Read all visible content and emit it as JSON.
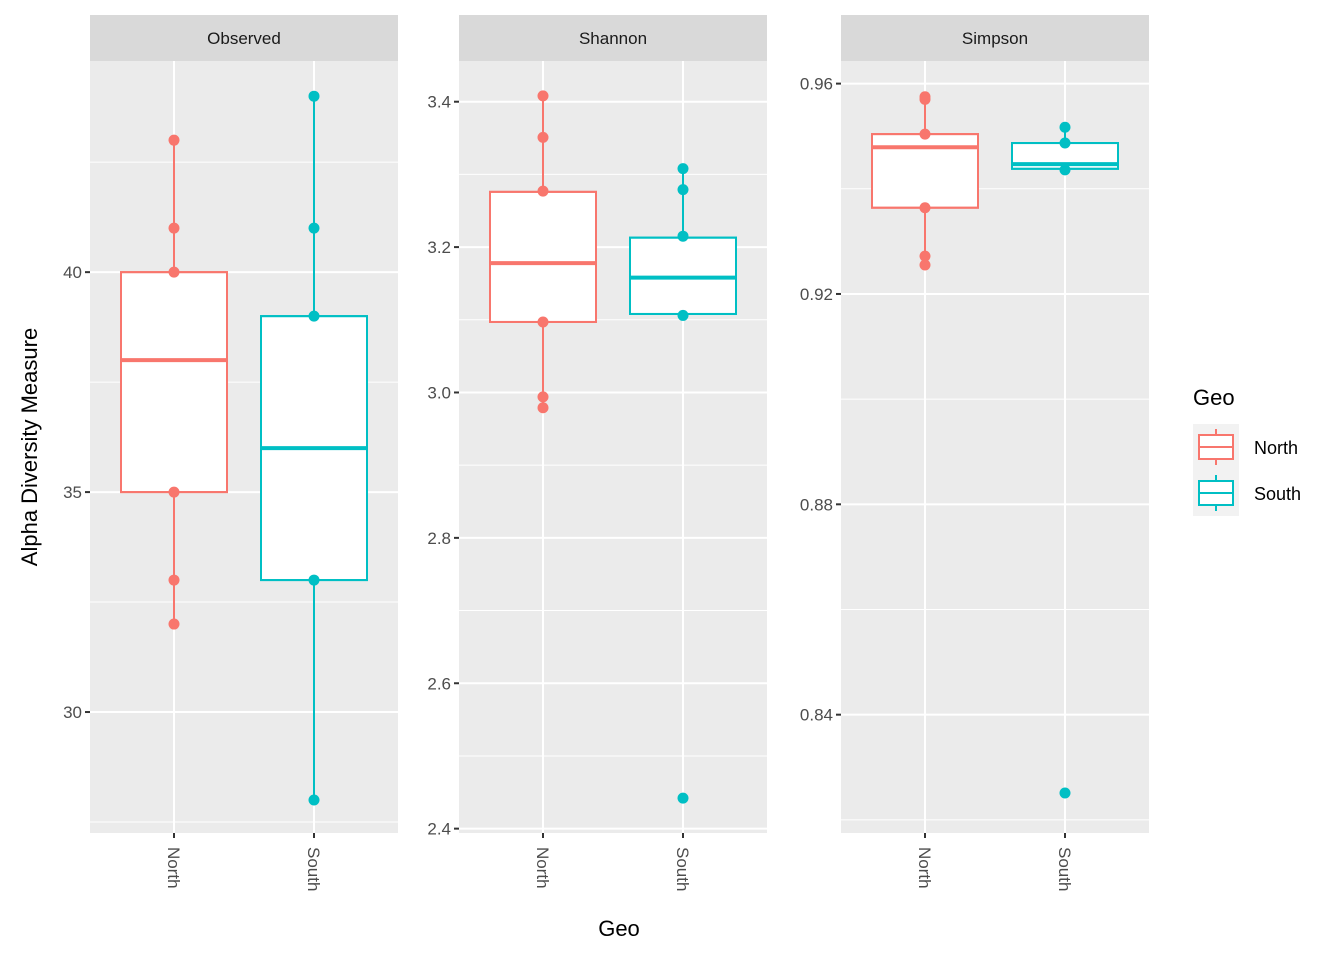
{
  "chart_data": {
    "type": "box",
    "facet_variable": "measure",
    "xlabel": "Geo",
    "ylabel": "Alpha Diversity Measure",
    "categories": [
      "North",
      "South"
    ],
    "legend": {
      "title": "Geo",
      "position": "right",
      "entries": [
        {
          "label": "North",
          "color": "#F8766D"
        },
        {
          "label": "South",
          "color": "#00BFC4"
        }
      ]
    },
    "panels": [
      {
        "title": "Observed",
        "ylim": [
          27.25,
          44.8
        ],
        "yticks": [
          30,
          35,
          40
        ],
        "ytick_labels": [
          "30",
          "35",
          "40"
        ],
        "minor_grid": [
          27.5,
          32.5,
          37.5,
          42.5
        ],
        "groups": [
          {
            "name": "North",
            "q1": 35,
            "median": 38,
            "q3": 40,
            "whisker_low": 32,
            "whisker_high": 43,
            "points": [
              43,
              41,
              40,
              35,
              33,
              32
            ]
          },
          {
            "name": "South",
            "q1": 33,
            "median": 36,
            "q3": 39,
            "whisker_low": 28,
            "whisker_high": 44,
            "points": [
              44,
              41,
              39,
              33,
              28
            ]
          }
        ]
      },
      {
        "title": "Shannon",
        "ylim": [
          2.394,
          3.456
        ],
        "yticks": [
          2.4,
          2.6,
          2.8,
          3.0,
          3.2,
          3.4
        ],
        "ytick_labels": [
          "2.4",
          "2.6",
          "2.8",
          "3.0",
          "3.2",
          "3.4"
        ],
        "minor_grid": [
          2.5,
          2.7,
          2.9,
          3.1,
          3.3
        ],
        "groups": [
          {
            "name": "North",
            "q1": 3.097,
            "median": 3.178,
            "q3": 3.276,
            "whisker_low": 2.979,
            "whisker_high": 3.408,
            "points": [
              3.408,
              3.351,
              3.277,
              3.097,
              2.994,
              2.979
            ]
          },
          {
            "name": "South",
            "q1": 3.108,
            "median": 3.158,
            "q3": 3.213,
            "whisker_low": 3.108,
            "whisker_high": 3.308,
            "points": [
              3.308,
              3.279,
              3.215,
              3.106,
              2.442
            ]
          }
        ]
      },
      {
        "title": "Simpson",
        "ylim": [
          0.8175,
          0.9643
        ],
        "yticks": [
          0.84,
          0.88,
          0.92,
          0.96
        ],
        "ytick_labels": [
          "0.84",
          "0.88",
          "0.92",
          "0.96"
        ],
        "minor_grid": [
          0.82,
          0.86,
          0.9,
          0.94
        ],
        "groups": [
          {
            "name": "North",
            "q1": 0.9364,
            "median": 0.9479,
            "q3": 0.9504,
            "whisker_low": 0.9255,
            "whisker_high": 0.9575,
            "points": [
              0.9575,
              0.957,
              0.9504,
              0.9364,
              0.9272,
              0.9255
            ]
          },
          {
            "name": "South",
            "q1": 0.9438,
            "median": 0.9447,
            "q3": 0.9487,
            "whisker_low": 0.9436,
            "whisker_high": 0.9517,
            "points": [
              0.9517,
              0.9487,
              0.9436,
              0.8251
            ]
          }
        ]
      }
    ]
  }
}
